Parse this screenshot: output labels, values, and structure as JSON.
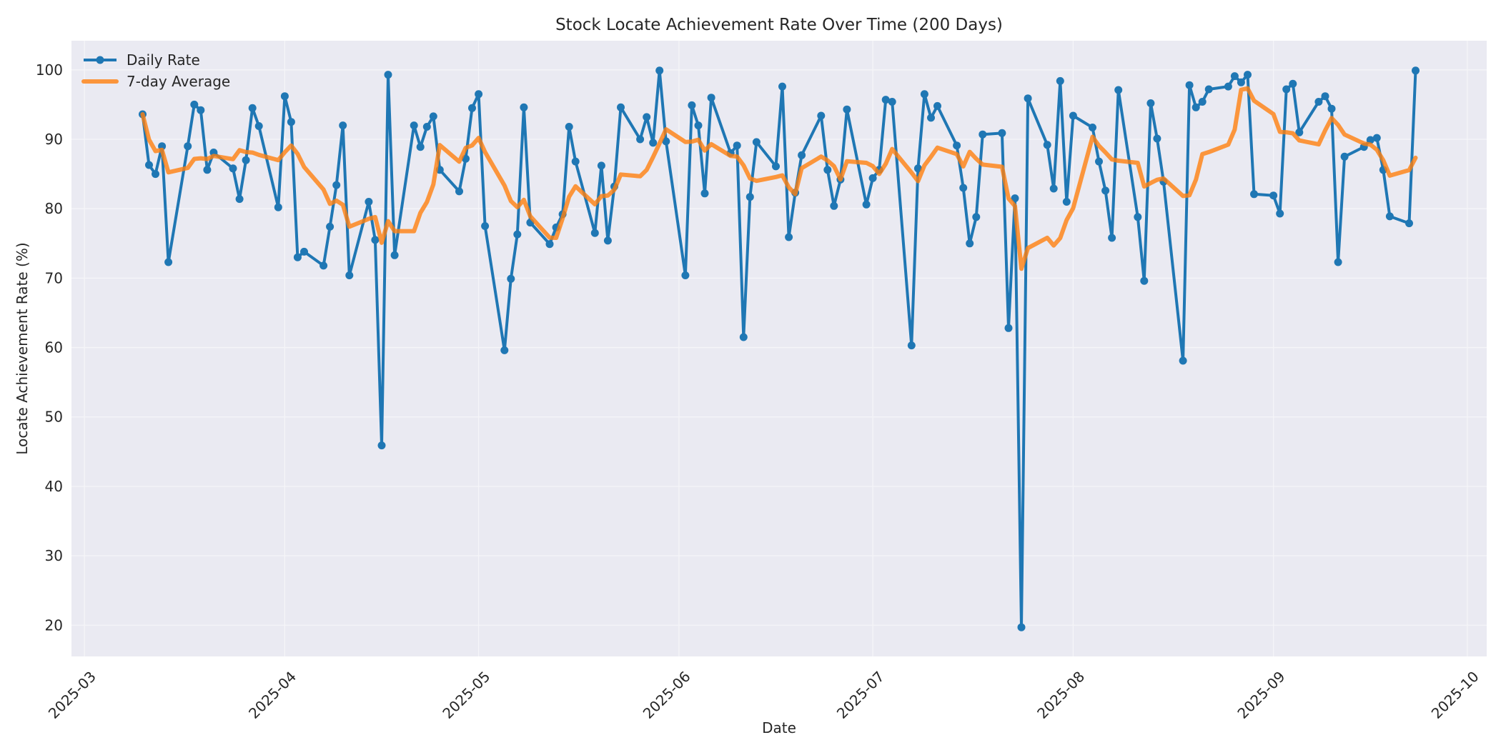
{
  "chart_data": {
    "type": "line",
    "title": "Stock Locate Achievement Rate Over Time (200 Days)",
    "xlabel": "Date",
    "ylabel": "Locate Achievement Rate (%)",
    "ylim": [
      15.5,
      104.2
    ],
    "yticks": [
      20,
      30,
      40,
      50,
      60,
      70,
      80,
      90,
      100
    ],
    "xlim": [
      "2025-02-27",
      "2025-10-04"
    ],
    "xticks": [
      "2025-03",
      "2025-04",
      "2025-05",
      "2025-06",
      "2025-07",
      "2025-08",
      "2025-09",
      "2025-10"
    ],
    "xtick_rotation": 45,
    "grid": true,
    "legend_position": "upper left",
    "x_start": "2025-03-10",
    "x_frequency": "business days",
    "series": [
      {
        "name": "Daily Rate",
        "color": "#1f77b4",
        "marker": "circle",
        "values": [
          93.6,
          86.3,
          85.0,
          89.0,
          72.3,
          89.0,
          95.0,
          94.2,
          85.6,
          88.1,
          85.8,
          81.4,
          87.0,
          94.5,
          91.9,
          80.2,
          96.2,
          92.5,
          73.0,
          73.8,
          71.8,
          77.4,
          83.4,
          92.0,
          70.4,
          81.0,
          75.5,
          45.9,
          99.3,
          73.3,
          92.0,
          88.9,
          91.8,
          93.3,
          85.6,
          82.5,
          87.2,
          94.5,
          96.5,
          77.5,
          59.6,
          69.9,
          76.3,
          94.6,
          78.0,
          74.9,
          77.3,
          79.2,
          91.8,
          86.8,
          76.5,
          86.2,
          75.4,
          83.2,
          94.6,
          90.0,
          93.2,
          89.5,
          99.9,
          89.7,
          70.4,
          94.9,
          92.0,
          82.2,
          96.0,
          88.0,
          89.1,
          61.5,
          81.7,
          89.6,
          86.1,
          97.6,
          75.9,
          82.3,
          87.7,
          93.4,
          85.6,
          80.4,
          84.2,
          94.3,
          80.6,
          84.4,
          85.6,
          95.7,
          95.4,
          60.3,
          85.8,
          96.5,
          93.1,
          94.8,
          89.1,
          83.0,
          75.0,
          78.8,
          90.7,
          90.9,
          62.8,
          81.5,
          19.7,
          95.9,
          89.2,
          82.9,
          98.4,
          81.0,
          93.4,
          91.7,
          86.8,
          82.6,
          75.8,
          97.1,
          78.8,
          69.6,
          95.2,
          90.1,
          83.9,
          58.1,
          97.8,
          94.6,
          95.4,
          97.2,
          97.6,
          99.1,
          98.2,
          99.3,
          82.1,
          81.9,
          79.3,
          97.2,
          98.0,
          91.0,
          95.4,
          96.2,
          94.4,
          72.3,
          87.5,
          88.9,
          89.9,
          90.2,
          85.6,
          78.9,
          77.9,
          99.9
        ]
      },
      {
        "name": "7-day Average",
        "color": "#ff7f0e",
        "marker": "none",
        "values": [
          93.6,
          89.95,
          88.3,
          88.48,
          85.24,
          85.87,
          87.17,
          87.26,
          87.16,
          87.6,
          87.14,
          88.44,
          88.16,
          88.09,
          87.76,
          86.99,
          88.14,
          89.1,
          87.9,
          86.01,
          82.77,
          80.7,
          81.16,
          80.56,
          77.4,
          78.54,
          78.79,
          75.09,
          78.21,
          76.77,
          76.77,
          79.41,
          80.96,
          83.5,
          89.17,
          86.77,
          88.76,
          89.11,
          90.2,
          88.16,
          83.34,
          81.1,
          80.21,
          81.27,
          78.91,
          75.83,
          75.8,
          78.6,
          81.73,
          83.23,
          80.64,
          81.81,
          81.89,
          82.73,
          84.93,
          84.67,
          85.59,
          87.44,
          89.4,
          91.44,
          89.61,
          89.66,
          89.94,
          88.37,
          89.3,
          87.6,
          87.51,
          86.24,
          84.36,
          84.01,
          84.57,
          84.8,
          83.07,
          82.1,
          85.84,
          87.51,
          86.94,
          86.13,
          84.21,
          86.84,
          86.6,
          86.13,
          85.01,
          86.46,
          88.6,
          85.19,
          83.97,
          86.24,
          87.49,
          88.8,
          87.86,
          86.09,
          88.19,
          87.19,
          86.36,
          86.04,
          81.47,
          80.39,
          71.34,
          74.33,
          75.81,
          74.7,
          75.77,
          78.37,
          80.07,
          90.36,
          89.06,
          88.11,
          87.1,
          86.91,
          86.6,
          83.2,
          83.7,
          84.17,
          84.36,
          81.83,
          81.93,
          84.19,
          87.87,
          88.16,
          89.23,
          91.4,
          97.13,
          97.34,
          95.56,
          93.63,
          91.07,
          91.01,
          90.86,
          89.83,
          89.27,
          91.29,
          93.07,
          92.07,
          90.69,
          89.39,
          89.23,
          88.49,
          86.97,
          84.76,
          85.56,
          87.33
        ]
      }
    ]
  },
  "colors": {
    "plot_background": "#eaeaf2",
    "grid": "#f5f5f8",
    "text": "#262626"
  }
}
